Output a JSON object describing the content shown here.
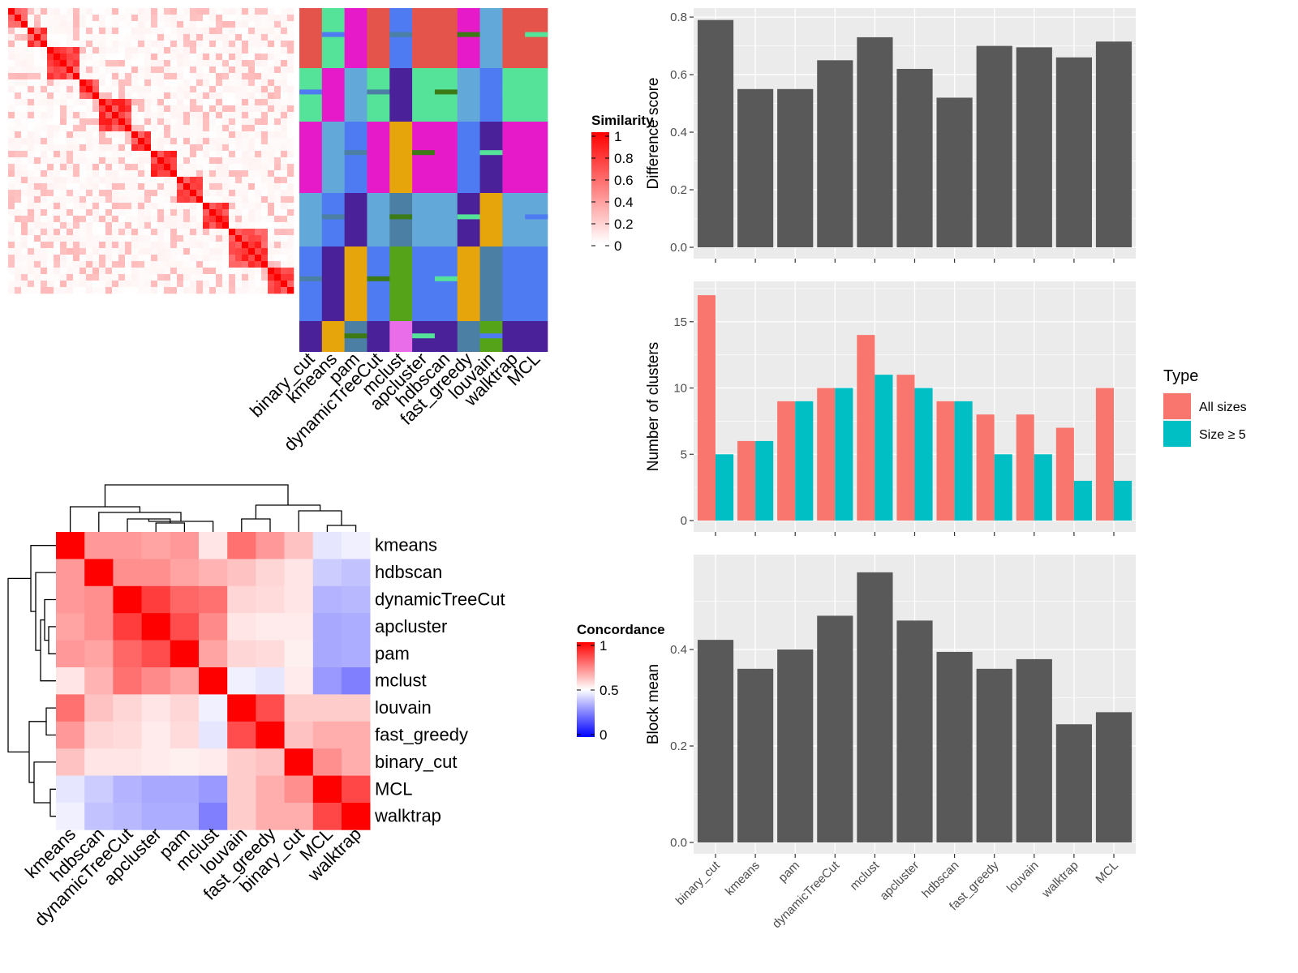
{
  "chart_data": [
    {
      "id": "similarity-heatmap",
      "type": "heatmap",
      "description_in_image": "cell-by-cell similarity heatmap with cluster assignment annotation columns",
      "annotation_columns": [
        "binary_cut",
        "kmeans",
        "pam",
        "dynamicTreeCut",
        "mclust",
        "apcluster",
        "hdbscan",
        "fast_greedy",
        "louvain",
        "walktrap",
        "MCL"
      ],
      "legend": {
        "title": "Similarity",
        "ticks": [
          "1",
          "0.8",
          "0.6",
          "0.4",
          "0.2",
          "0"
        ],
        "colors": {
          "low": "#ffffff",
          "high": "#ff0000"
        }
      }
    },
    {
      "id": "concordance-heatmap",
      "type": "heatmap",
      "row_labels": [
        "kmeans",
        "hdbscan",
        "dynamicTreeCut",
        "apcluster",
        "pam",
        "mclust",
        "louvain",
        "fast_greedy",
        "binary_cut",
        "MCL",
        "walktrap"
      ],
      "col_labels": [
        "kmeans",
        "hdbscan",
        "dynamicTreeCut",
        "apcluster",
        "pam",
        "mclust",
        "louvain",
        "fast_greedy",
        "binary_cut",
        "MCL",
        "walktrap"
      ],
      "values": [
        [
          1.0,
          0.7,
          0.7,
          0.68,
          0.7,
          0.55,
          0.78,
          0.7,
          0.62,
          0.45,
          0.47
        ],
        [
          0.7,
          1.0,
          0.72,
          0.72,
          0.68,
          0.65,
          0.62,
          0.58,
          0.55,
          0.4,
          0.38
        ],
        [
          0.7,
          0.72,
          1.0,
          0.88,
          0.8,
          0.78,
          0.58,
          0.57,
          0.55,
          0.35,
          0.36
        ],
        [
          0.68,
          0.72,
          0.88,
          1.0,
          0.85,
          0.73,
          0.55,
          0.54,
          0.54,
          0.33,
          0.34
        ],
        [
          0.7,
          0.68,
          0.8,
          0.85,
          1.0,
          0.68,
          0.58,
          0.57,
          0.53,
          0.33,
          0.34
        ],
        [
          0.55,
          0.65,
          0.78,
          0.73,
          0.68,
          1.0,
          0.47,
          0.45,
          0.54,
          0.3,
          0.25
        ],
        [
          0.78,
          0.62,
          0.58,
          0.55,
          0.58,
          0.47,
          1.0,
          0.85,
          0.6,
          0.6,
          0.6
        ],
        [
          0.7,
          0.58,
          0.57,
          0.54,
          0.57,
          0.45,
          0.85,
          1.0,
          0.62,
          0.66,
          0.66
        ],
        [
          0.62,
          0.55,
          0.55,
          0.54,
          0.53,
          0.54,
          0.6,
          0.62,
          1.0,
          0.72,
          0.66
        ],
        [
          0.45,
          0.4,
          0.35,
          0.33,
          0.33,
          0.3,
          0.6,
          0.66,
          0.72,
          1.0,
          0.86
        ],
        [
          0.47,
          0.38,
          0.36,
          0.34,
          0.34,
          0.25,
          0.6,
          0.66,
          0.66,
          0.86,
          1.0
        ]
      ],
      "legend": {
        "title": "Concordance",
        "ticks": [
          "1",
          "0.5",
          "0"
        ],
        "colors": {
          "low": "#0000ff",
          "mid": "#ffffff",
          "high": "#ff0000"
        }
      }
    },
    {
      "id": "difference-score",
      "type": "bar",
      "categories": [
        "binary_cut",
        "kmeans",
        "pam",
        "dynamicTreeCut",
        "mclust",
        "apcluster",
        "hdbscan",
        "fast_greedy",
        "louvain",
        "walktrap",
        "MCL"
      ],
      "values": [
        0.79,
        0.55,
        0.55,
        0.65,
        0.73,
        0.62,
        0.52,
        0.7,
        0.695,
        0.66,
        0.715
      ],
      "ylabel": "Difference score",
      "ylim": [
        0,
        0.82
      ],
      "yticks": [
        "0.0",
        "0.2",
        "0.4",
        "0.6",
        "0.8"
      ],
      "bar_color": "#595959",
      "panel_bg": "#ebebeb"
    },
    {
      "id": "number-of-clusters",
      "type": "bar",
      "categories": [
        "binary_cut",
        "kmeans",
        "pam",
        "dynamicTreeCut",
        "mclust",
        "apcluster",
        "hdbscan",
        "fast_greedy",
        "louvain",
        "walktrap",
        "MCL"
      ],
      "series": [
        {
          "name": "All sizes",
          "color": "#f8766d",
          "values": [
            17,
            6,
            9,
            10,
            14,
            11,
            9,
            8,
            8,
            7,
            10
          ]
        },
        {
          "name": "Size ≥ 5",
          "color": "#00bfc4",
          "values": [
            5,
            6,
            9,
            10,
            11,
            10,
            9,
            5,
            5,
            3,
            3
          ]
        }
      ],
      "ylabel": "Number of clusters",
      "ylim": [
        0,
        17.8
      ],
      "yticks": [
        "0",
        "5",
        "10",
        "15"
      ],
      "legend": {
        "title": "Type",
        "placement": "right"
      },
      "panel_bg": "#ebebeb"
    },
    {
      "id": "block-mean",
      "type": "bar",
      "categories": [
        "binary_cut",
        "kmeans",
        "pam",
        "dynamicTreeCut",
        "mclust",
        "apcluster",
        "hdbscan",
        "fast_greedy",
        "louvain",
        "walktrap",
        "MCL"
      ],
      "values": [
        0.42,
        0.36,
        0.4,
        0.47,
        0.56,
        0.46,
        0.395,
        0.36,
        0.38,
        0.245,
        0.27
      ],
      "ylabel": "Block mean",
      "ylim": [
        0,
        0.59
      ],
      "yticks": [
        "0.0",
        "0.2",
        "0.4"
      ],
      "bar_color": "#595959",
      "panel_bg": "#ebebeb"
    }
  ]
}
